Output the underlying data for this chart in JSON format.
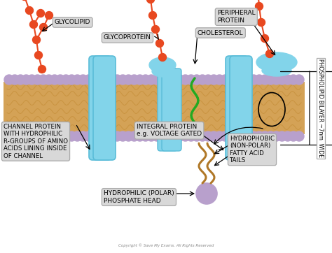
{
  "bg_color": "#ffffff",
  "membrane_color": "#d4a256",
  "head_color": "#b8a0cc",
  "protein_color": "#82d4ea",
  "protein_edge": "#5abcd8",
  "glyco_bead_color": "#e84820",
  "green_color": "#22aa22",
  "brown_tail_color": "#b07828",
  "label_box_color": "#d8d8d8",
  "label_edge_color": "#aaaaaa",
  "copyright": "Copyright © Save My Exams. All Rights Reserved",
  "labels": {
    "glycolipid": "GLYCOLIPID",
    "glycoprotein": "GLYCOPROTEIN",
    "peripheral": "PERIPHERAL\nPROTEIN",
    "cholesterol": "CHOLESTEROL",
    "channel": "CHANNEL PROTEIN\nWITH HYDROPHILIC\nR-GROUPS OF AMINO\nACIDS LINING INSIDE\nOF CHANNEL",
    "integral": "INTEGRAL PROTEIN\ne.g. VOLTAGE GATED",
    "hydrophobic": "HYDROPHOBIC\n(NON-POLAR)\nFATTY ACID\nTAILS",
    "hydrophilic": "HYDROPHILIC (POLAR)\nPHOSPHATE HEAD",
    "bilayer": "PHOSPHOLIPID BILAYER ~7nm  WIDE"
  }
}
